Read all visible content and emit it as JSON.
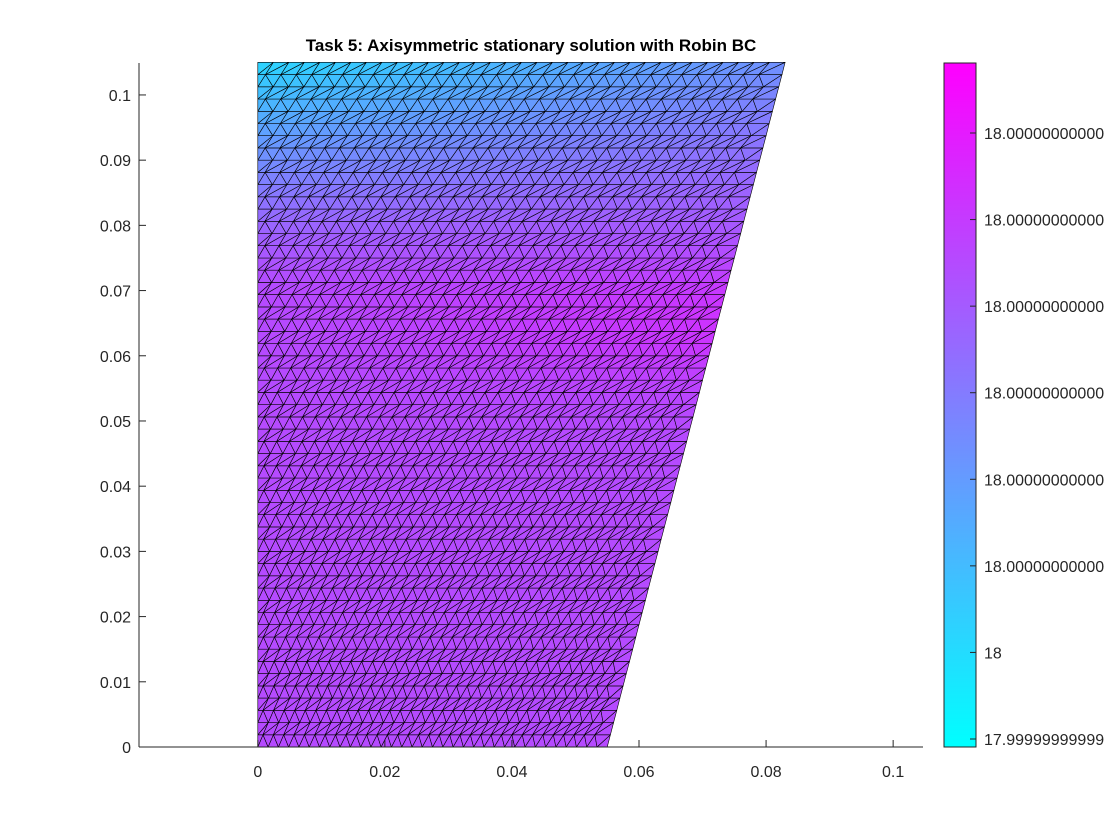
{
  "chart_data": {
    "type": "heatmap",
    "title": "Task 5: Axisymmetric stationary solution with Robin BC",
    "xlabel": "",
    "ylabel": "",
    "xlim": [
      -0.0187,
      0.1047
    ],
    "ylim": [
      0,
      0.1049
    ],
    "x_ticks": [
      "0",
      "0.02",
      "0.04",
      "0.06",
      "0.08",
      "0.1"
    ],
    "x_tick_values": [
      0,
      0.02,
      0.04,
      0.06,
      0.08,
      0.1
    ],
    "y_ticks": [
      "0",
      "0.01",
      "0.02",
      "0.03",
      "0.04",
      "0.05",
      "0.06",
      "0.07",
      "0.08",
      "0.09",
      "0.1"
    ],
    "y_tick_values": [
      0,
      0.01,
      0.02,
      0.03,
      0.04,
      0.05,
      0.06,
      0.07,
      0.08,
      0.09,
      0.1
    ],
    "domain_polygon": [
      [
        0,
        0
      ],
      [
        0.055,
        0
      ],
      [
        0.083,
        0.105
      ],
      [
        0,
        0.105
      ]
    ],
    "mesh": "triangular, edges drawn in black",
    "colormap": "cool",
    "colormap_endpoints": [
      "#00ffff",
      "#ff00ff"
    ],
    "colorbar": {
      "location": "right",
      "tick_labels": [
        "18.00000000000",
        "18.00000000000",
        "18.00000000000",
        "18.00000000000",
        "18.00000000000",
        "18.00000000000",
        "18",
        "17.99999999999"
      ]
    },
    "grid": false
  }
}
